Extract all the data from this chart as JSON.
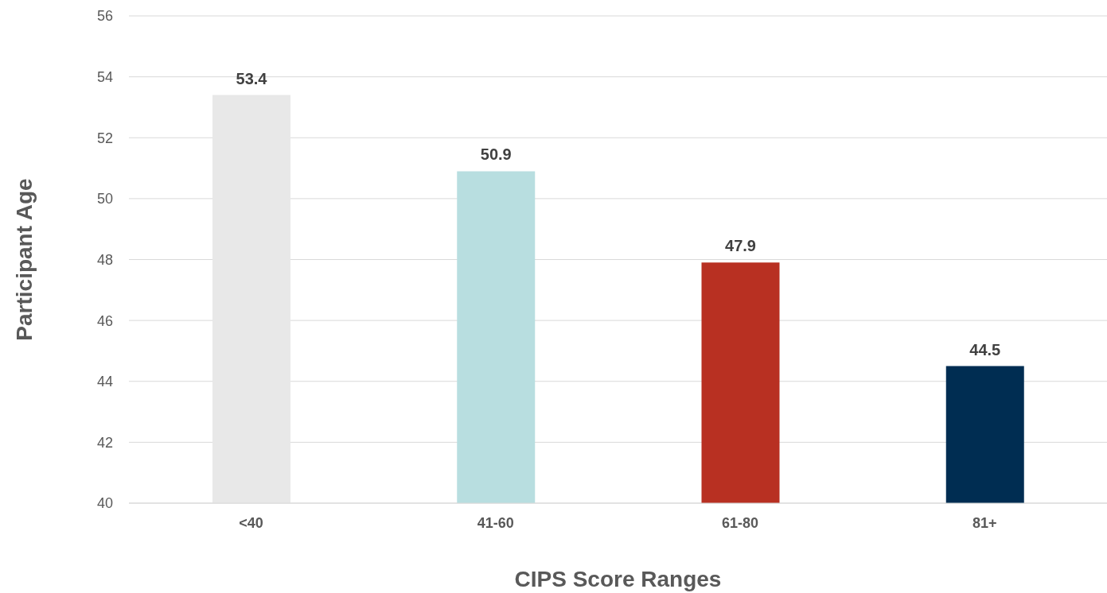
{
  "chart_data": {
    "type": "bar",
    "xlabel": "CIPS Score Ranges",
    "ylabel": "Participant  Age",
    "categories": [
      "<40",
      "41-60",
      "61-80",
      "81+"
    ],
    "values": [
      53.4,
      50.9,
      47.9,
      44.5
    ],
    "colors": [
      "#e8e8e8",
      "#b8dee0",
      "#b83022",
      "#002d52"
    ],
    "ylim": [
      40,
      56
    ],
    "yticks": [
      40,
      42,
      44,
      46,
      48,
      50,
      52,
      54,
      56
    ],
    "grid": "y",
    "data_labels": true
  }
}
